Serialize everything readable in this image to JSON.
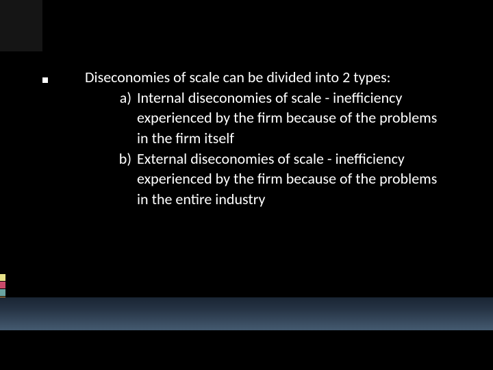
{
  "slide": {
    "intro": "Diseconomies of scale can be divided into 2 types:",
    "items": [
      {
        "label": "a)",
        "text": "Internal diseconomies of scale - inefficiency experienced by the firm because of the problems in the firm itself"
      },
      {
        "label": "b)",
        "text": "External diseconomies of scale - inefficiency experienced by the firm because of the problems in the entire industry"
      }
    ]
  },
  "style": {
    "background_color": "#000000",
    "text_color": "#ffffff",
    "body_fontsize": 22,
    "bullet_color": "#ffffff",
    "bullet_shape": "square",
    "top_box_color": "#151515",
    "side_marker_colors": [
      "#e8e28a",
      "#c94a6a",
      "#6aa3a0",
      "#c98a3a"
    ],
    "gradient": {
      "from": "#1a2533",
      "to": "#445a70"
    }
  }
}
